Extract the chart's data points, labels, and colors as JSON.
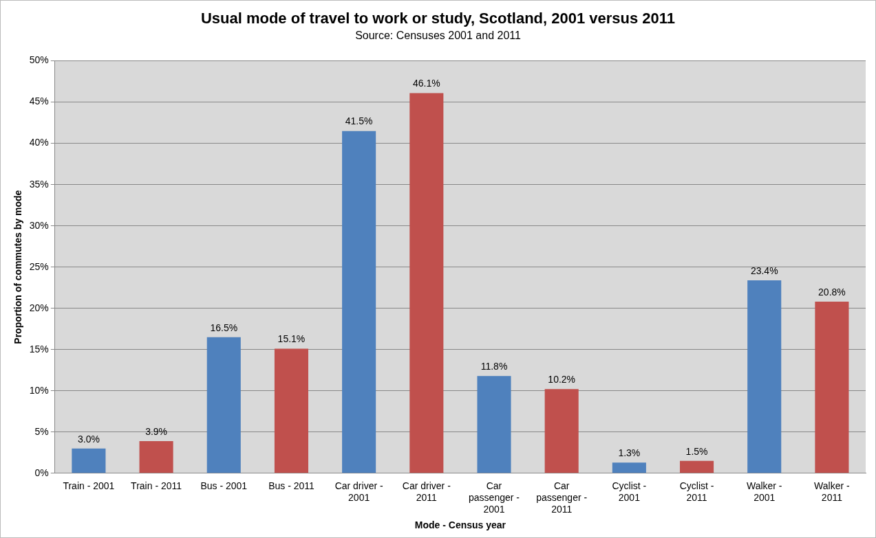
{
  "chart_data": {
    "type": "bar",
    "title": "Usual mode of travel to work or study, Scotland, 2001 versus 2011",
    "subtitle": "Source: Censuses 2001 and 2011",
    "xlabel": "Mode - Census year",
    "ylabel": "Proportion of commutes by mode",
    "categories": [
      "Train - 2001",
      "Train - 2011",
      "Bus - 2001",
      "Bus - 2011",
      "Car driver - 2001",
      "Car driver - 2011",
      "Car passenger - 2001",
      "Car passenger - 2011",
      "Cyclist - 2001",
      "Cyclist - 2011",
      "Walker - 2001",
      "Walker - 2011"
    ],
    "values": [
      3.0,
      3.9,
      16.5,
      15.1,
      41.5,
      46.1,
      11.8,
      10.2,
      1.3,
      1.5,
      23.4,
      20.8
    ],
    "colors": [
      "#4f81bd",
      "#c0504d",
      "#4f81bd",
      "#c0504d",
      "#4f81bd",
      "#c0504d",
      "#4f81bd",
      "#c0504d",
      "#4f81bd",
      "#c0504d",
      "#4f81bd",
      "#c0504d"
    ],
    "value_labels": [
      "3.0%",
      "3.9%",
      "16.5%",
      "15.1%",
      "41.5%",
      "46.1%",
      "11.8%",
      "10.2%",
      "1.3%",
      "1.5%",
      "23.4%",
      "20.8%"
    ],
    "ylim": [
      0,
      50
    ],
    "yticks": [
      {
        "value": 0,
        "label": "0%"
      },
      {
        "value": 5,
        "label": "5%"
      },
      {
        "value": 10,
        "label": "10%"
      },
      {
        "value": 15,
        "label": "15%"
      },
      {
        "value": 20,
        "label": "20%"
      },
      {
        "value": 25,
        "label": "25%"
      },
      {
        "value": 30,
        "label": "30%"
      },
      {
        "value": 35,
        "label": "35%"
      },
      {
        "value": 40,
        "label": "40%"
      },
      {
        "value": 45,
        "label": "45%"
      },
      {
        "value": 50,
        "label": "50%"
      }
    ],
    "grid": "y",
    "legend": false
  }
}
